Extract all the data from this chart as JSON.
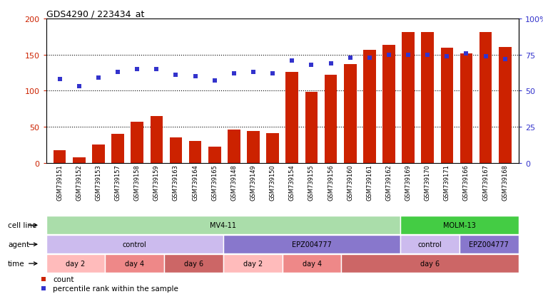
{
  "title": "GDS4290 / 223434_at",
  "samples": [
    "GSM739151",
    "GSM739152",
    "GSM739153",
    "GSM739157",
    "GSM739158",
    "GSM739159",
    "GSM739163",
    "GSM739164",
    "GSM739165",
    "GSM739148",
    "GSM739149",
    "GSM739150",
    "GSM739154",
    "GSM739155",
    "GSM739156",
    "GSM739160",
    "GSM739161",
    "GSM739162",
    "GSM739169",
    "GSM739170",
    "GSM739171",
    "GSM739166",
    "GSM739167",
    "GSM739168"
  ],
  "counts": [
    18,
    8,
    25,
    40,
    57,
    65,
    35,
    30,
    22,
    46,
    44,
    41,
    126,
    98,
    122,
    137,
    157,
    163,
    181,
    181,
    159,
    152,
    181,
    160
  ],
  "percentile": [
    58,
    53,
    59,
    63,
    65,
    65,
    61,
    60,
    57,
    62,
    63,
    62,
    71,
    68,
    69,
    73,
    73,
    75,
    75,
    75,
    74,
    76,
    74,
    72
  ],
  "bar_color": "#cc2200",
  "dot_color": "#3333cc",
  "bg_color": "#ffffff",
  "cell_line_groups": [
    {
      "text": "MV4-11",
      "start": 0,
      "end": 17,
      "color": "#aaddaa"
    },
    {
      "text": "MOLM-13",
      "start": 18,
      "end": 23,
      "color": "#44cc44"
    }
  ],
  "agent_groups": [
    {
      "text": "control",
      "start": 0,
      "end": 8,
      "color": "#ccbbee"
    },
    {
      "text": "EPZ004777",
      "start": 9,
      "end": 17,
      "color": "#8877cc"
    },
    {
      "text": "control",
      "start": 18,
      "end": 20,
      "color": "#ccbbee"
    },
    {
      "text": "EPZ004777",
      "start": 21,
      "end": 23,
      "color": "#8877cc"
    }
  ],
  "time_groups": [
    {
      "text": "day 2",
      "start": 0,
      "end": 2,
      "color": "#ffbbbb"
    },
    {
      "text": "day 4",
      "start": 3,
      "end": 5,
      "color": "#ee8888"
    },
    {
      "text": "day 6",
      "start": 6,
      "end": 8,
      "color": "#cc6666"
    },
    {
      "text": "day 2",
      "start": 9,
      "end": 11,
      "color": "#ffbbbb"
    },
    {
      "text": "day 4",
      "start": 12,
      "end": 14,
      "color": "#ee8888"
    },
    {
      "text": "day 6",
      "start": 15,
      "end": 23,
      "color": "#cc6666"
    }
  ],
  "row_labels": [
    "cell line",
    "agent",
    "time"
  ]
}
